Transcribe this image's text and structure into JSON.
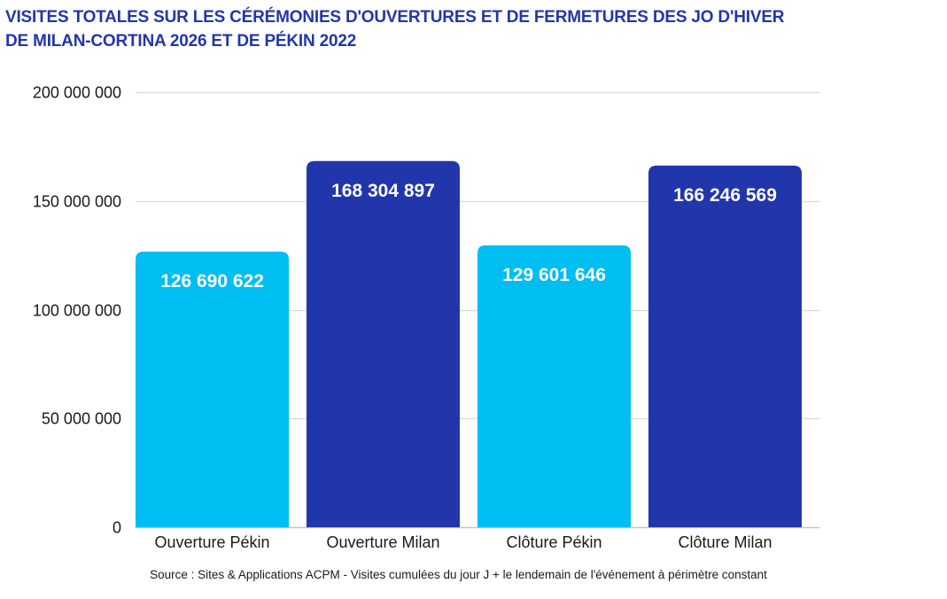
{
  "chart_data": {
    "type": "bar",
    "title": "VISITES TOTALES SUR LES CÉRÉMONIES D'OUVERTURES ET DE FERMETURES DES JO D'HIVER DE MILAN-CORTINA 2026 ET DE PÉKIN 2022",
    "title_lines": [
      "VISITES TOTALES SUR LES CÉRÉMONIES D'OUVERTURES ET DE FERMETURES DES JO D'HIVER",
      "DE MILAN-CORTINA 2026 ET DE PÉKIN 2022"
    ],
    "xlabel": "",
    "ylabel": "",
    "categories": [
      "Ouverture Pékin",
      "Ouverture Milan",
      "Clôture Pékin",
      "Clôture Milan"
    ],
    "values": [
      126690622,
      168304897,
      129601646,
      166246569
    ],
    "data_labels": [
      "126 690 622",
      "168 304 897",
      "129 601 646",
      "166 246 569"
    ],
    "bar_colors": [
      "#00bdf2",
      "#2236ab",
      "#00bdf2",
      "#2236ab"
    ],
    "ylim": [
      0,
      200000000
    ],
    "yticks": [
      0,
      50000000,
      100000000,
      150000000,
      200000000
    ],
    "ytick_labels": [
      "0",
      "50 000 000",
      "100 000 000",
      "150 000 000",
      "200 000 000"
    ],
    "grid": true,
    "legend": "none",
    "source": "Source : Sites & Applications ACPM - Visites cumulées du jour J + le lendemain de l'événement à périmètre constant"
  },
  "colors": {
    "title": "#2236ab",
    "gridline": "#d9d9d9",
    "baseline": "#bfbfbf"
  }
}
